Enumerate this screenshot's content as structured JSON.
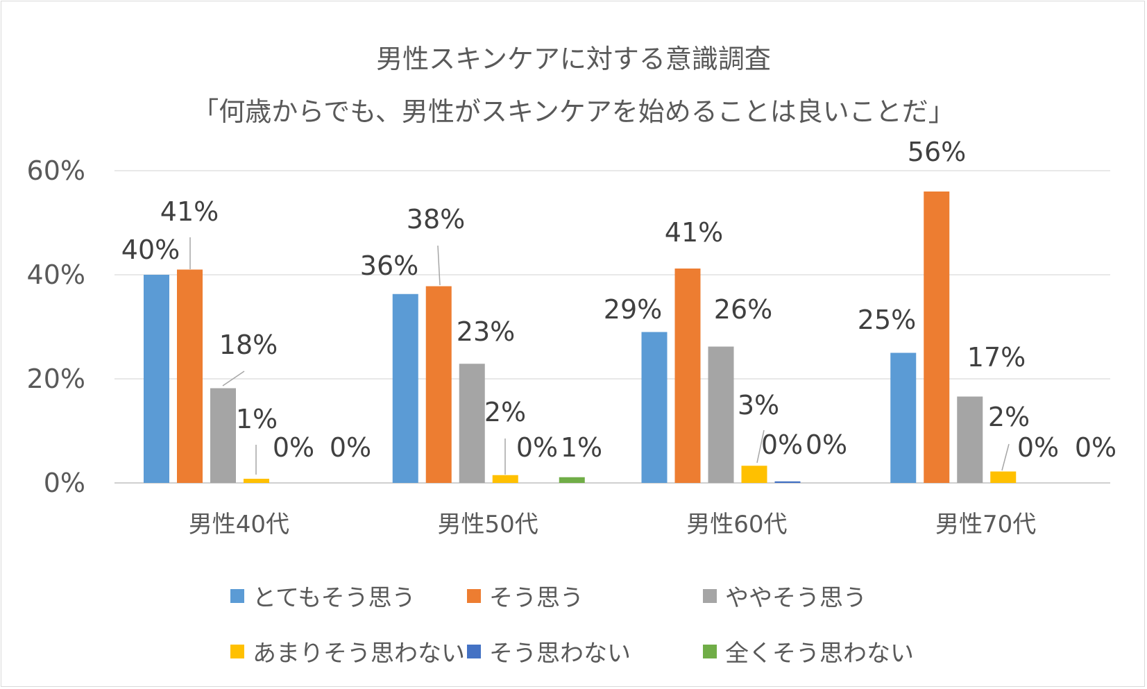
{
  "chart_data": {
    "type": "bar",
    "title": "男性スキンケアに対する意識調査",
    "subtitle": "「何歳からでも、男性がスキンケアを始めることは良いことだ」",
    "categories": [
      "男性40代",
      "男性50代",
      "男性60代",
      "男性70代"
    ],
    "ylim": [
      0,
      60
    ],
    "yticks": [
      0,
      20,
      40,
      60
    ],
    "ytick_labels": [
      "0%",
      "20%",
      "40%",
      "60%"
    ],
    "grid": true,
    "legend_position": "bottom",
    "series": [
      {
        "name": "とてもそう思う",
        "color": "#5b9bd5",
        "values": [
          40,
          36.3,
          29,
          25
        ],
        "labels": [
          "40%",
          "36%",
          "29%",
          "25%"
        ]
      },
      {
        "name": "そう思う",
        "color": "#ed7d31",
        "values": [
          41,
          37.8,
          41.2,
          56
        ],
        "labels": [
          "41%",
          "38%",
          "41%",
          "56%"
        ]
      },
      {
        "name": "ややそう思う",
        "color": "#a5a5a5",
        "values": [
          18.2,
          22.9,
          26.2,
          16.6
        ],
        "labels": [
          "18%",
          "23%",
          "26%",
          "17%"
        ]
      },
      {
        "name": "あまりそう思わない",
        "color": "#ffc000",
        "values": [
          0.8,
          1.5,
          3.3,
          2.2
        ],
        "labels": [
          "1%",
          "2%",
          "3%",
          "2%"
        ]
      },
      {
        "name": "そう思わない",
        "color": "#4472c4",
        "values": [
          0,
          0,
          0.3,
          0
        ],
        "labels": [
          "0%",
          "0%",
          "0%",
          "0%"
        ]
      },
      {
        "name": "全くそう思わない",
        "color": "#70ad47",
        "values": [
          0,
          1.1,
          0,
          0
        ],
        "labels": [
          "0%",
          "1%",
          "0%",
          "0%"
        ]
      }
    ]
  }
}
